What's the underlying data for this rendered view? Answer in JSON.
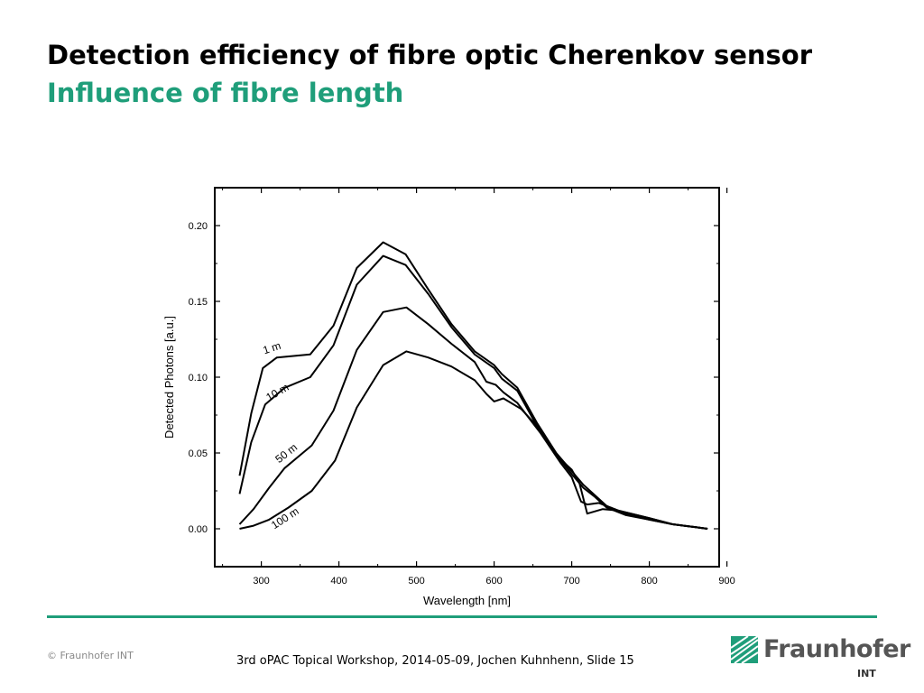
{
  "slide": {
    "title": "Detection efficiency of fibre optic Cherenkov sensor",
    "subtitle": "Influence of fibre length",
    "copyright": "© Fraunhofer INT",
    "footer": "3rd oPAC Topical Workshop, 2014-05-09, Jochen Kuhnhenn, Slide 15",
    "logo_name": "Fraunhofer",
    "logo_sub": "INT",
    "accent_color": "#1f9e7a"
  },
  "chart_data": {
    "type": "line",
    "title": "",
    "xlabel": "Wavelength [nm]",
    "ylabel": "Detected Photons [a.u.]",
    "xlim": [
      240,
      890
    ],
    "ylim": [
      -0.025,
      0.225
    ],
    "xticks": [
      300,
      400,
      500,
      600,
      700,
      800,
      900
    ],
    "yticks": [
      0.0,
      0.05,
      0.1,
      0.15,
      0.2
    ],
    "xtick_labels": [
      "300",
      "400",
      "500",
      "600",
      "700",
      "800",
      "900"
    ],
    "ytick_labels": [
      "0.00",
      "0.05",
      "0.10",
      "0.15",
      "0.20"
    ],
    "grid": false,
    "legend": "inline curve labels",
    "series": [
      {
        "name": "1 m",
        "x": [
          272,
          287,
          302,
          320,
          363,
          393,
          423,
          457,
          486,
          515,
          545,
          575,
          600,
          610,
          630,
          655,
          680,
          700,
          715,
          730,
          745,
          770,
          800,
          830,
          860,
          875
        ],
        "y": [
          0.035,
          0.076,
          0.106,
          0.113,
          0.115,
          0.134,
          0.172,
          0.189,
          0.181,
          0.158,
          0.135,
          0.117,
          0.108,
          0.102,
          0.093,
          0.07,
          0.05,
          0.038,
          0.029,
          0.022,
          0.015,
          0.01,
          0.006,
          0.003,
          0.001,
          0.0
        ]
      },
      {
        "name": "10 m",
        "x": [
          272,
          287,
          305,
          330,
          363,
          393,
          423,
          457,
          486,
          515,
          545,
          575,
          600,
          610,
          630,
          655,
          680,
          700,
          715,
          730,
          745,
          770,
          800,
          830,
          860,
          875
        ],
        "y": [
          0.023,
          0.057,
          0.082,
          0.093,
          0.1,
          0.121,
          0.161,
          0.18,
          0.174,
          0.155,
          0.133,
          0.115,
          0.106,
          0.099,
          0.091,
          0.068,
          0.049,
          0.036,
          0.027,
          0.021,
          0.014,
          0.009,
          0.006,
          0.003,
          0.001,
          0.0
        ]
      },
      {
        "name": "50 m",
        "x": [
          272,
          290,
          310,
          330,
          365,
          393,
          423,
          457,
          487,
          515,
          545,
          575,
          590,
          602,
          612,
          630,
          660,
          685,
          700,
          712,
          720,
          735,
          760,
          800,
          830,
          860,
          875
        ],
        "y": [
          0.003,
          0.013,
          0.027,
          0.04,
          0.055,
          0.078,
          0.118,
          0.143,
          0.146,
          0.135,
          0.122,
          0.11,
          0.097,
          0.095,
          0.09,
          0.083,
          0.063,
          0.044,
          0.034,
          0.018,
          0.016,
          0.017,
          0.012,
          0.007,
          0.003,
          0.001,
          0.0
        ]
      },
      {
        "name": "100 m",
        "x": [
          272,
          290,
          310,
          335,
          365,
          395,
          423,
          457,
          487,
          515,
          545,
          575,
          590,
          600,
          612,
          635,
          660,
          685,
          700,
          710,
          720,
          740,
          760,
          800,
          830,
          860,
          875
        ],
        "y": [
          0.0,
          0.002,
          0.006,
          0.014,
          0.025,
          0.045,
          0.08,
          0.108,
          0.117,
          0.113,
          0.107,
          0.098,
          0.089,
          0.084,
          0.086,
          0.079,
          0.065,
          0.046,
          0.039,
          0.03,
          0.01,
          0.013,
          0.012,
          0.007,
          0.003,
          0.001,
          0.0
        ]
      }
    ],
    "annotations": [
      {
        "text": "1 m",
        "x": 315,
        "y": 0.117,
        "angle": -18
      },
      {
        "text": "10 m",
        "x": 323,
        "y": 0.088,
        "angle": -30
      },
      {
        "text": "50 m",
        "x": 335,
        "y": 0.048,
        "angle": -38
      },
      {
        "text": "100 m",
        "x": 333,
        "y": 0.005,
        "angle": -33
      }
    ]
  }
}
